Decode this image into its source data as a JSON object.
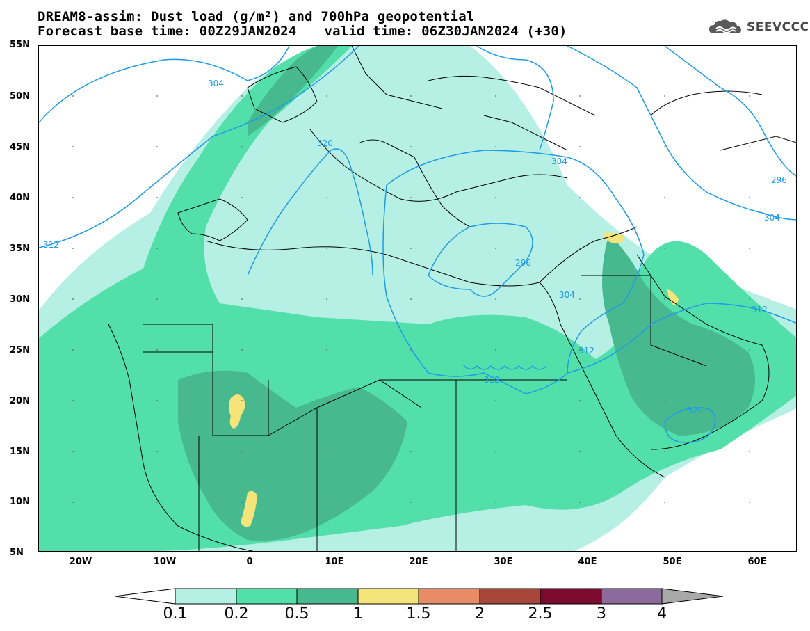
{
  "title_line1": "DREAM8-assim: Dust load (g/m²) and 700hPa geopotential",
  "title_line2_base": "Forecast base time: 00Z29JAN2024",
  "title_line2_valid": "valid time: 06Z30JAN2024 (+30)",
  "logo_text": "SEEVCCC",
  "colors": {
    "level_0_1": "#b6efe4",
    "level_0_2": "#52dfa9",
    "level_0_5": "#48b88e",
    "level_1": "#f5e47a",
    "level_1_5": "#e88c68",
    "level_2": "#a7473c",
    "level_2_5": "#7a0b2e",
    "level_3": "#8c6b9c",
    "level_4": "#a8a8a8",
    "contour": "#1e9be8"
  },
  "latitude_labels": [
    "55N",
    "50N",
    "45N",
    "40N",
    "35N",
    "30N",
    "25N",
    "20N",
    "15N",
    "10N",
    "5N"
  ],
  "longitude_labels": [
    "20W",
    "10W",
    "0",
    "10E",
    "20E",
    "30E",
    "40E",
    "50E",
    "60E"
  ],
  "contour_labels": [
    "304",
    "320",
    "304",
    "296",
    "304",
    "312",
    "296",
    "304",
    "312",
    "312",
    "312",
    "320"
  ],
  "colorbar_labels": [
    "0.1",
    "0.2",
    "0.5",
    "1",
    "1.5",
    "2",
    "2.5",
    "3",
    "4"
  ]
}
